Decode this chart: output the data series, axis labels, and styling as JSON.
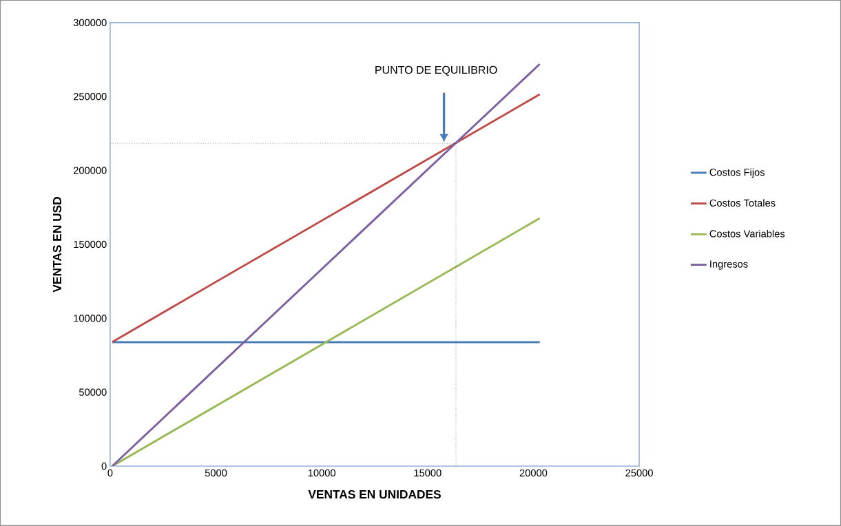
{
  "chart_data": {
    "type": "line",
    "xlabel": "VENTAS EN UNIDADES",
    "ylabel": "VENTAS EN USD",
    "xlim": [
      0,
      25000
    ],
    "ylim": [
      0,
      300000
    ],
    "xticks": [
      0,
      5000,
      10000,
      15000,
      20000,
      25000
    ],
    "yticks": [
      0,
      50000,
      100000,
      150000,
      200000,
      250000,
      300000
    ],
    "legend": "right",
    "x": [
      100,
      20300
    ],
    "series": [
      {
        "name": "Costos Fijos",
        "color": "#4a7ebb",
        "values": [
          83800,
          83800
        ]
      },
      {
        "name": "Costos Totales",
        "color": "#be4b48",
        "values": [
          84000,
          251500
        ]
      },
      {
        "name": "Costos Variables",
        "color": "#98b954",
        "values": [
          0,
          167700
        ]
      },
      {
        "name": "Ingresos",
        "color": "#7d60a0",
        "values": [
          0,
          272000
        ]
      }
    ],
    "ref_lines": [
      {
        "axis": "y",
        "value": 218400,
        "color": "#000000",
        "line_style": "dotted"
      },
      {
        "axis": "x",
        "value": 16340,
        "color": "#000000",
        "line_style": "dotted"
      }
    ],
    "annotations": [
      "PUNTO DE EQUILIBRIO"
    ]
  }
}
